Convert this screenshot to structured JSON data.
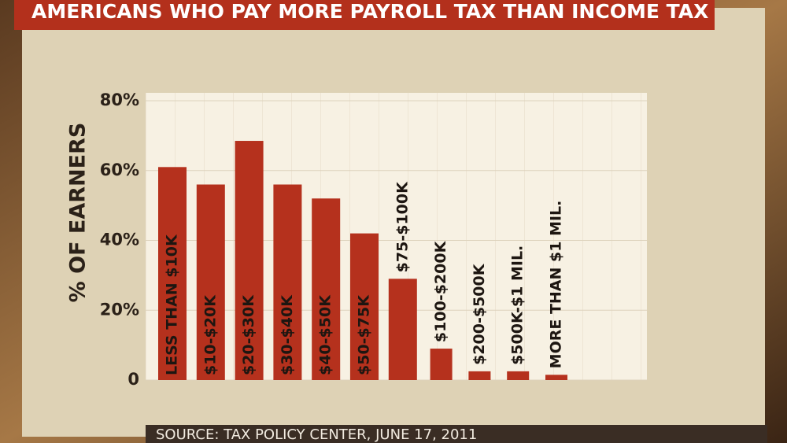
{
  "chart_data": {
    "type": "bar",
    "title": "AMERICANS WHO PAY MORE PAYROLL TAX THAN INCOME TAX",
    "y_label": "% OF EARNERS",
    "source": "SOURCE: TAX POLICY CENTER, JUNE 17, 2011",
    "categories": [
      "LESS THAN $10K",
      "$10-$20K",
      "$20-$30K",
      "$30-$40K",
      "$40-$50K",
      "$50-$75K",
      "$75-$100K",
      "$100-$200K",
      "$200-$500K",
      "$500K-$1 MIL.",
      "MORE THAN $1 MIL."
    ],
    "values": [
      61,
      56,
      68.5,
      56,
      52,
      42,
      29,
      9,
      2.5,
      2.5,
      1.5
    ],
    "color": "#b5311d",
    "ylim": [
      0,
      80
    ],
    "yticks": [
      0,
      {
        "value": 20,
        "label": "20%"
      },
      {
        "value": 40,
        "label": "40%"
      },
      {
        "value": 60,
        "label": "60%"
      },
      {
        "value": 80,
        "label": "80%"
      }
    ],
    "grid": true
  }
}
